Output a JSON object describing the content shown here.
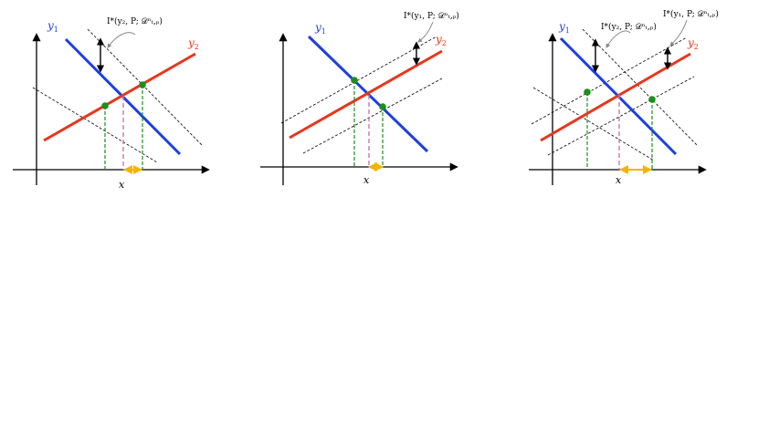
{
  "panels": [
    {
      "name": "panel-1",
      "y1_label": "y",
      "y1_sub": "1",
      "y2_label": "y",
      "y2_sub": "2",
      "x_label": "x",
      "annotations": [
        {
          "text": "I*(y₂, P; 𝒟ⁿₜ,ₚ)"
        }
      ]
    },
    {
      "name": "panel-2",
      "y1_label": "y",
      "y1_sub": "1",
      "y2_label": "y",
      "y2_sub": "2",
      "x_label": "x",
      "annotations": [
        {
          "text": "I*(y₁, P; 𝒟ⁿₜ,ₚ)"
        }
      ]
    },
    {
      "name": "panel-3",
      "y1_label": "y",
      "y1_sub": "1",
      "y2_label": "y",
      "y2_sub": "2",
      "x_label": "x",
      "annotations": [
        {
          "text": "I*(y₂, P; 𝒟ⁿₜ,ₚ)"
        },
        {
          "text": "I*(y₁, P; 𝒟ⁿₜ,ₚ)"
        }
      ]
    }
  ],
  "colors": {
    "y1_line": "#1f3fe0",
    "y2_line": "#e8361c",
    "points": "#1a8f1a",
    "drop_lines": "#1a8f1a",
    "center_drop": "#c77aa8",
    "interval_arrow": "#f5b400",
    "axes": "#000000",
    "band_lines": "#000000"
  }
}
